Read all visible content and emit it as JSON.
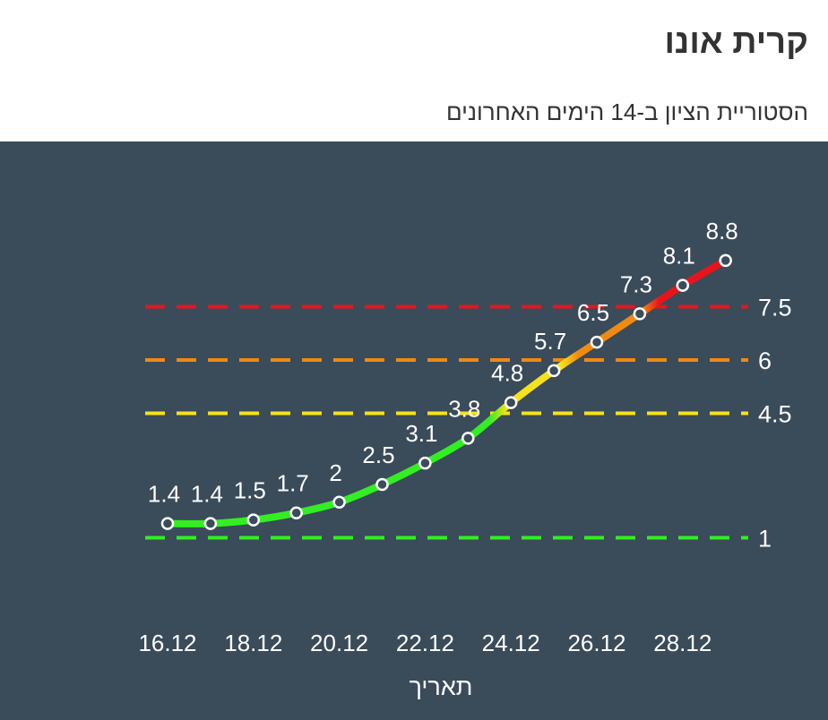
{
  "header": {
    "title": "קרית אונו",
    "subtitle": "הסטוריית הציון ב-14 הימים האחרונים"
  },
  "chart_data": {
    "type": "line",
    "xlabel": "תאריך",
    "x": [
      "16.12",
      "17.12",
      "18.12",
      "19.12",
      "20.12",
      "21.12",
      "22.12",
      "23.12",
      "24.12",
      "25.12",
      "26.12",
      "27.12",
      "28.12",
      "29.12"
    ],
    "values": [
      1.4,
      1.4,
      1.5,
      1.7,
      2,
      2.5,
      3.1,
      3.8,
      4.8,
      5.7,
      6.5,
      7.3,
      8.1,
      8.8
    ],
    "value_labels": [
      "1.4",
      "1.4",
      "1.5",
      "1.7",
      "2",
      "2.5",
      "3.1",
      "3.8",
      "4.8",
      "5.7",
      "6.5",
      "7.3",
      "8.1",
      "8.8"
    ],
    "x_tick_labels": [
      "16.12",
      "18.12",
      "20.12",
      "22.12",
      "24.12",
      "26.12",
      "28.12"
    ],
    "thresholds": [
      {
        "value": 1,
        "label": "1",
        "color": "#33ee22"
      },
      {
        "value": 4.5,
        "label": "4.5",
        "color": "#f5e21a"
      },
      {
        "value": 6,
        "label": "6",
        "color": "#f08a12"
      },
      {
        "value": 7.5,
        "label": "7.5",
        "color": "#e8141c"
      }
    ],
    "grid": false,
    "colors": {
      "background": "#3a4b5a",
      "green": "#33ee22",
      "yellow": "#f5e21a",
      "orange": "#f08a12",
      "red": "#e8141c",
      "text": "#ffffff"
    }
  }
}
